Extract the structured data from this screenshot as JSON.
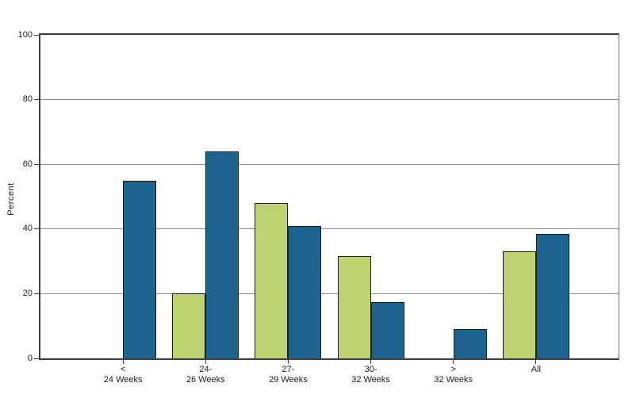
{
  "chart_data": {
    "type": "bar",
    "title": "",
    "xlabel": "",
    "ylabel": "Percent",
    "ylim": [
      0,
      100
    ],
    "yticks": [
      0,
      20,
      40,
      60,
      80,
      100
    ],
    "grid": "horizontal",
    "legend": "none",
    "categories": [
      {
        "lines": [
          "<",
          "24 Weeks"
        ]
      },
      {
        "lines": [
          "24-",
          "26 Weeks"
        ]
      },
      {
        "lines": [
          "27-",
          "29 Weeks"
        ]
      },
      {
        "lines": [
          "30-",
          "32 Weeks"
        ]
      },
      {
        "lines": [
          ">",
          "32 Weeks"
        ]
      },
      {
        "lines": [
          "All"
        ]
      }
    ],
    "series": [
      {
        "name": "green",
        "color": "#bdd36f",
        "border_color": "#1c1c1c",
        "values": [
          0,
          20,
          48,
          31.5,
          0,
          33
        ]
      },
      {
        "name": "blue",
        "color": "#1d6390",
        "border_color": "#1c1c1c",
        "values": [
          55,
          64,
          41,
          17.5,
          9,
          38.5
        ]
      }
    ],
    "colors": {
      "background": "#ffffff",
      "gridline": "#8f8f8f",
      "axis": "#3f3f3f",
      "text": "#1c1c1c"
    }
  }
}
